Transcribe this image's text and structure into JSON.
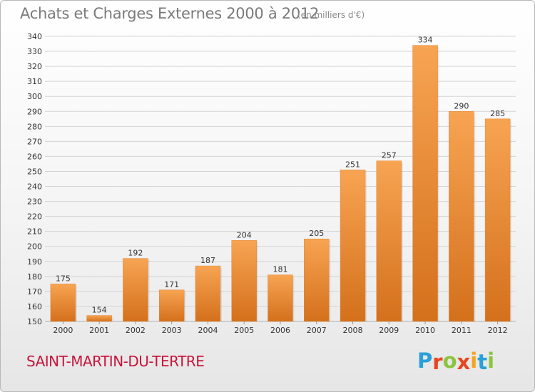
{
  "title": "Achats et Charges Externes 2000 à 2012",
  "unit": "(en milliers d'€)",
  "commune": "SAINT-MARTIN-DU-TERTRE",
  "logo": {
    "text": "Proxiti",
    "letter_colors": [
      "#2aa0d8",
      "#e8461f",
      "#8ac53e",
      "#e8461f",
      "#f3a51d",
      "#2aa0d8",
      "#8ac53e"
    ]
  },
  "colors": {
    "bar_top": "#f7a452",
    "bar_bottom": "#d4701c",
    "grid": "#d4d4d4",
    "axis_text": "#333333",
    "title": "#7a7a7a",
    "commune": "#c8143c"
  },
  "chart_data": {
    "type": "bar",
    "title": "Achats et Charges Externes 2000 à 2012",
    "xlabel": "",
    "ylabel": "",
    "ylim": [
      150,
      340
    ],
    "yticks": [
      150,
      160,
      170,
      180,
      190,
      200,
      210,
      220,
      230,
      240,
      250,
      260,
      270,
      280,
      290,
      300,
      310,
      320,
      330,
      340
    ],
    "grid": true,
    "categories": [
      "2000",
      "2001",
      "2002",
      "2003",
      "2004",
      "2005",
      "2006",
      "2007",
      "2008",
      "2009",
      "2010",
      "2011",
      "2012"
    ],
    "values": [
      175,
      154,
      192,
      171,
      187,
      204,
      181,
      205,
      251,
      257,
      334,
      290,
      285
    ],
    "data_labels": [
      "175",
      "154",
      "192",
      "171",
      "187",
      "204",
      "181",
      "205",
      "251",
      "257",
      "334",
      "290",
      "285"
    ]
  }
}
